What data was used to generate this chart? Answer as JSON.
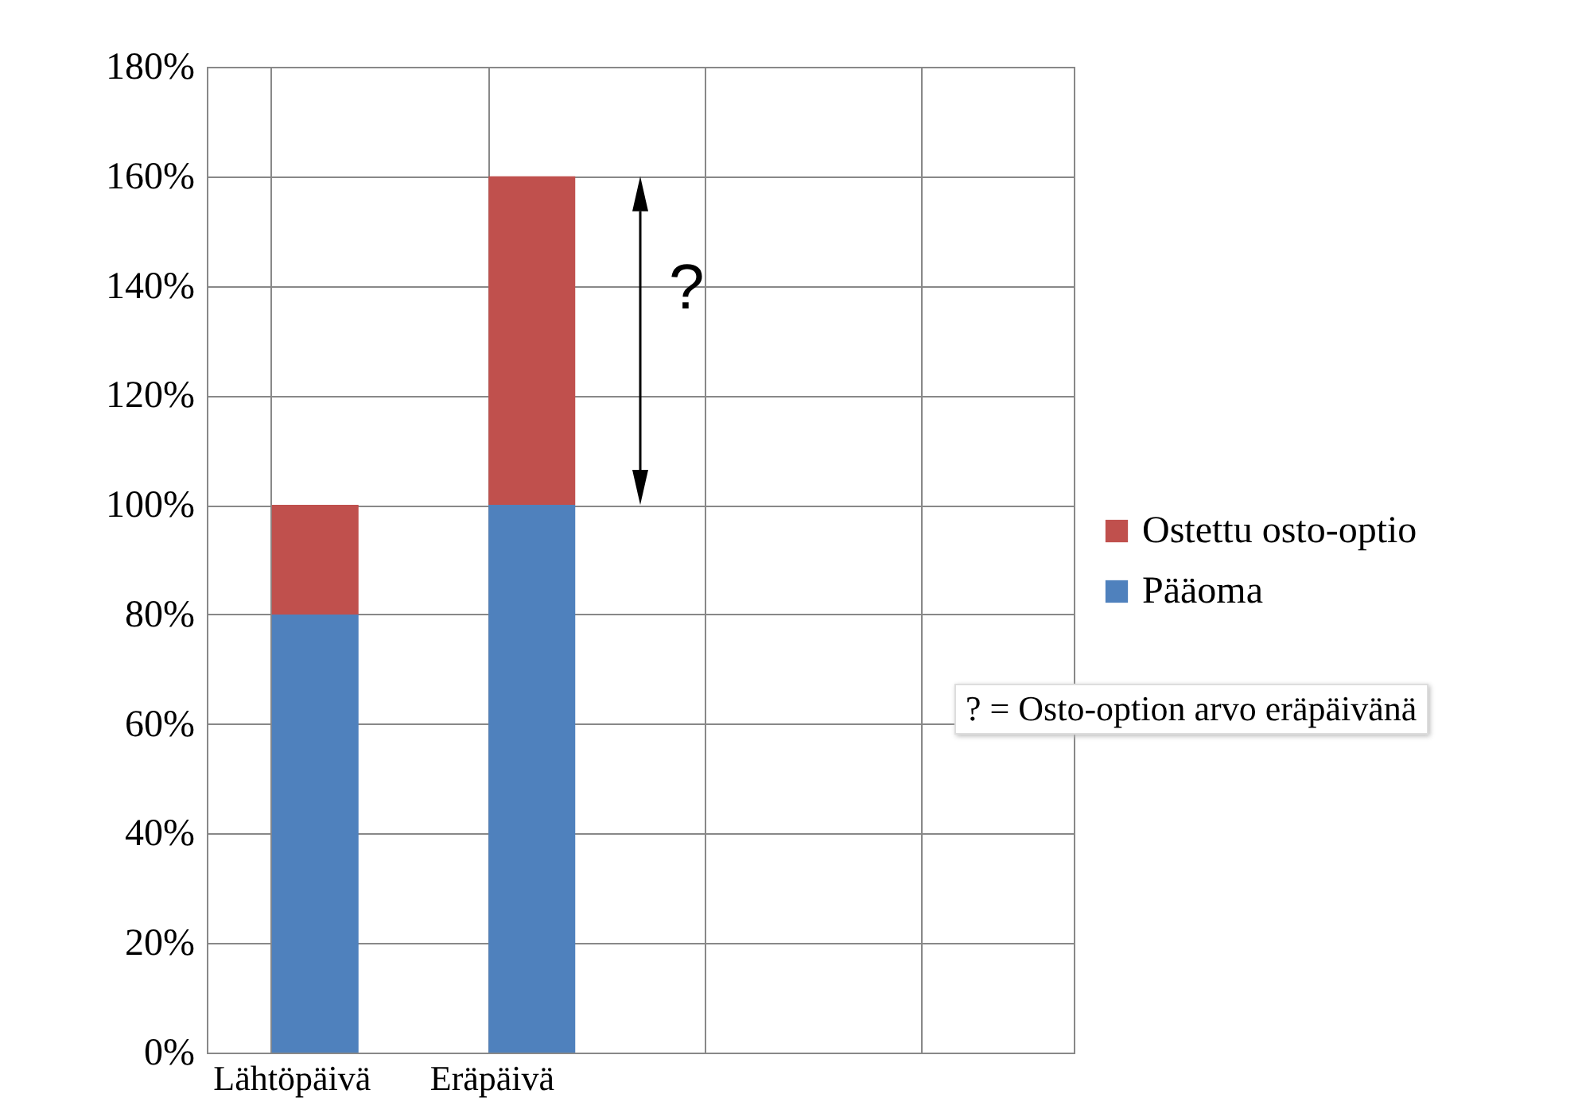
{
  "chart_data": {
    "type": "bar",
    "stacked": true,
    "categories": [
      "Lähtöpäivä",
      "Eräpäivä",
      null,
      null
    ],
    "series": [
      {
        "name": "Pääoma",
        "color": "#4f81bd",
        "values": [
          80,
          100,
          null,
          null
        ]
      },
      {
        "name": "Ostettu osto-optio",
        "color": "#c0504d",
        "values": [
          20,
          60,
          null,
          null
        ]
      }
    ],
    "ylim": [
      0,
      180
    ],
    "yticks": [
      {
        "value": 0,
        "label": "0%"
      },
      {
        "value": 20,
        "label": "20%"
      },
      {
        "value": 40,
        "label": "40%"
      },
      {
        "value": 60,
        "label": "60%"
      },
      {
        "value": 80,
        "label": "80%"
      },
      {
        "value": 100,
        "label": "100%"
      },
      {
        "value": 120,
        "label": "120%"
      },
      {
        "value": 140,
        "label": "140%"
      },
      {
        "value": 160,
        "label": "160%"
      },
      {
        "value": 180,
        "label": "180%"
      }
    ],
    "grid": true,
    "legend": "right",
    "annotations": [
      "?",
      "? = Osto-option arvo eräpäivänä"
    ]
  }
}
